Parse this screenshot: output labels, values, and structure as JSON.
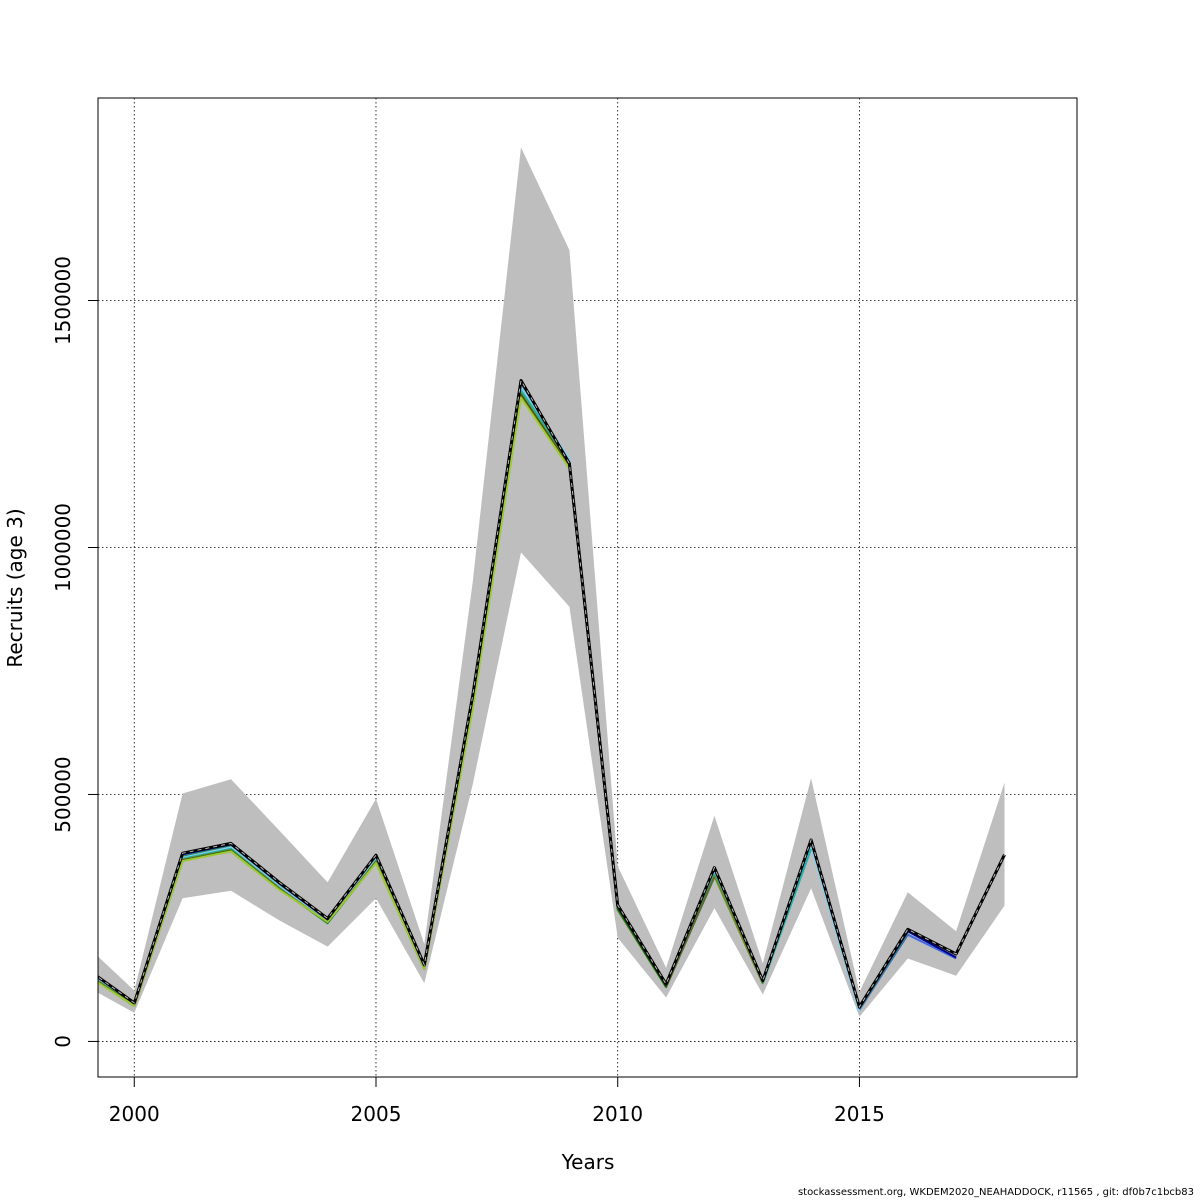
{
  "chart_data": {
    "type": "line",
    "xlabel": "Years",
    "ylabel": "Recruits (age 3)",
    "xlim": [
      1999.25,
      2019.5
    ],
    "ylim": [
      -72000,
      1910000
    ],
    "x_ticks": [
      2000,
      2005,
      2010,
      2015
    ],
    "y_ticks": [
      0,
      500000,
      1000000,
      1500000
    ],
    "x_tick_labels": [
      "2000",
      "2005",
      "2010",
      "2015"
    ],
    "y_tick_labels": [
      "0",
      "500000",
      "1000000",
      "1500000"
    ],
    "grid": true,
    "colors": {
      "band": "#bebebe",
      "reference": "#000000",
      "series": [
        "#4169e1",
        "#2e8b57",
        "#87ceeb",
        "#20b2aa",
        "#6b8e23",
        "#556b2f",
        "#006400",
        "#8b4513",
        "#9acd32",
        "#00008b"
      ]
    },
    "confidence_band": {
      "x": [
        1999,
        2000,
        2001,
        2002,
        2003,
        2004,
        2005,
        2006,
        2007,
        2008,
        2009,
        2010,
        2011,
        2012,
        2013,
        2014,
        2015,
        2016,
        2017,
        2018
      ],
      "lower": [
        112000,
        58000,
        290000,
        305000,
        245000,
        192000,
        290000,
        118000,
        520000,
        990000,
        880000,
        210000,
        89000,
        270000,
        95000,
        310000,
        50000,
        168000,
        133000,
        275000
      ],
      "upper": [
        195000,
        103000,
        502000,
        531000,
        427000,
        322000,
        491000,
        197000,
        930000,
        1810000,
        1602000,
        355000,
        149000,
        457000,
        158000,
        533000,
        100000,
        302000,
        223000,
        524000
      ]
    },
    "reference_series": {
      "x": [
        1999,
        2000,
        2001,
        2002,
        2003,
        2004,
        2005,
        2006,
        2007,
        2008,
        2009,
        2010,
        2011,
        2012,
        2013,
        2014,
        2015,
        2016,
        2017,
        2018
      ],
      "values": [
        148000,
        78000,
        381000,
        401000,
        322000,
        249000,
        377000,
        155000,
        700000,
        1338000,
        1170000,
        276000,
        116000,
        352000,
        123000,
        408000,
        70000,
        227000,
        177000,
        378000
      ]
    },
    "series": [
      {
        "values": [
          145000,
          77000,
          377000,
          398000,
          318000,
          246000,
          374000,
          153000,
          696000,
          1332000,
          1174000,
          273000,
          114000,
          349000,
          121000,
          403000,
          64000,
          216000,
          168000
        ]
      },
      {
        "values": [
          143000,
          76000,
          374000,
          396000,
          316000,
          243000,
          372000,
          151000,
          690000,
          1327000,
          1168000,
          270000,
          113000,
          345000,
          120000,
          398000,
          66000,
          219000
        ]
      },
      {
        "values": [
          141000,
          75000,
          372000,
          393000,
          314000,
          242000,
          369000,
          150000,
          688000,
          1325000,
          1180000,
          268000,
          112000,
          342000,
          119000,
          394000,
          60000
        ]
      },
      {
        "values": [
          139000,
          74000,
          370000,
          390000,
          311000,
          239000,
          366000,
          149000,
          684000,
          1318000,
          1172000,
          267000,
          111000,
          338000,
          118000,
          390000
        ]
      },
      {
        "values": [
          138000,
          73000,
          368000,
          388000,
          310000,
          240000,
          364000,
          148000,
          680000,
          1312000,
          1166000,
          266000,
          110000,
          335000,
          117000
        ]
      },
      {
        "values": [
          137000,
          73000,
          367000,
          387000,
          309000,
          241000,
          363000,
          148000,
          678000,
          1310000,
          1164000,
          268000,
          110000,
          333000
        ]
      },
      {
        "values": [
          136000,
          72000,
          366000,
          386000,
          308000,
          241000,
          362000,
          147000,
          676000,
          1308000,
          1163000,
          270000,
          111000
        ]
      },
      {
        "values": [
          136000,
          72000,
          366000,
          385000,
          308000,
          242000,
          362000,
          147000,
          675000,
          1306000,
          1162000,
          272000
        ]
      },
      {
        "values": [
          135000,
          72000,
          365000,
          385000,
          307000,
          242000,
          361000,
          147000,
          672000,
          1303000,
          1160000
        ]
      },
      {
        "values": [
          148000,
          78000,
          379000,
          399000,
          320000,
          247000,
          376000,
          154000,
          698000,
          1335000,
          1172000,
          274000,
          115000,
          350000,
          122000,
          405000,
          68000,
          223000,
          170000
        ]
      }
    ]
  },
  "footer": {
    "text": "stockassessment.org, WKDEM2020_NEAHADDOCK, r11565 , git: df0b7c1bcb83"
  }
}
